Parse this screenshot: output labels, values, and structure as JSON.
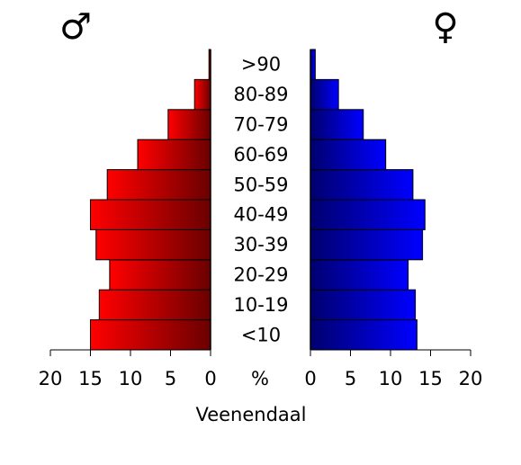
{
  "chart_data": {
    "type": "bar",
    "orientation": "horizontal",
    "title": "",
    "xlabel": "Veenendaal",
    "center_axis_label": "%",
    "categories": [
      "<10",
      "10-19",
      "20-29",
      "30-39",
      "40-49",
      "50-59",
      "60-69",
      "70-79",
      "80-89",
      ">90"
    ],
    "series": [
      {
        "name": "♂",
        "values": [
          15.0,
          13.9,
          12.6,
          14.3,
          15.0,
          12.9,
          9.1,
          5.3,
          2.0,
          0.2
        ],
        "color_light": "#ff0000",
        "color_dark": "#6a0000"
      },
      {
        "name": "♀",
        "values": [
          13.3,
          13.1,
          12.2,
          14.0,
          14.3,
          12.8,
          9.4,
          6.6,
          3.5,
          0.6
        ],
        "color_light": "#0000ff",
        "color_dark": "#00006e"
      }
    ],
    "xlim": [
      0,
      20
    ],
    "xticks": [
      0,
      5,
      10,
      15,
      20
    ],
    "grid": false,
    "legend": "none"
  }
}
